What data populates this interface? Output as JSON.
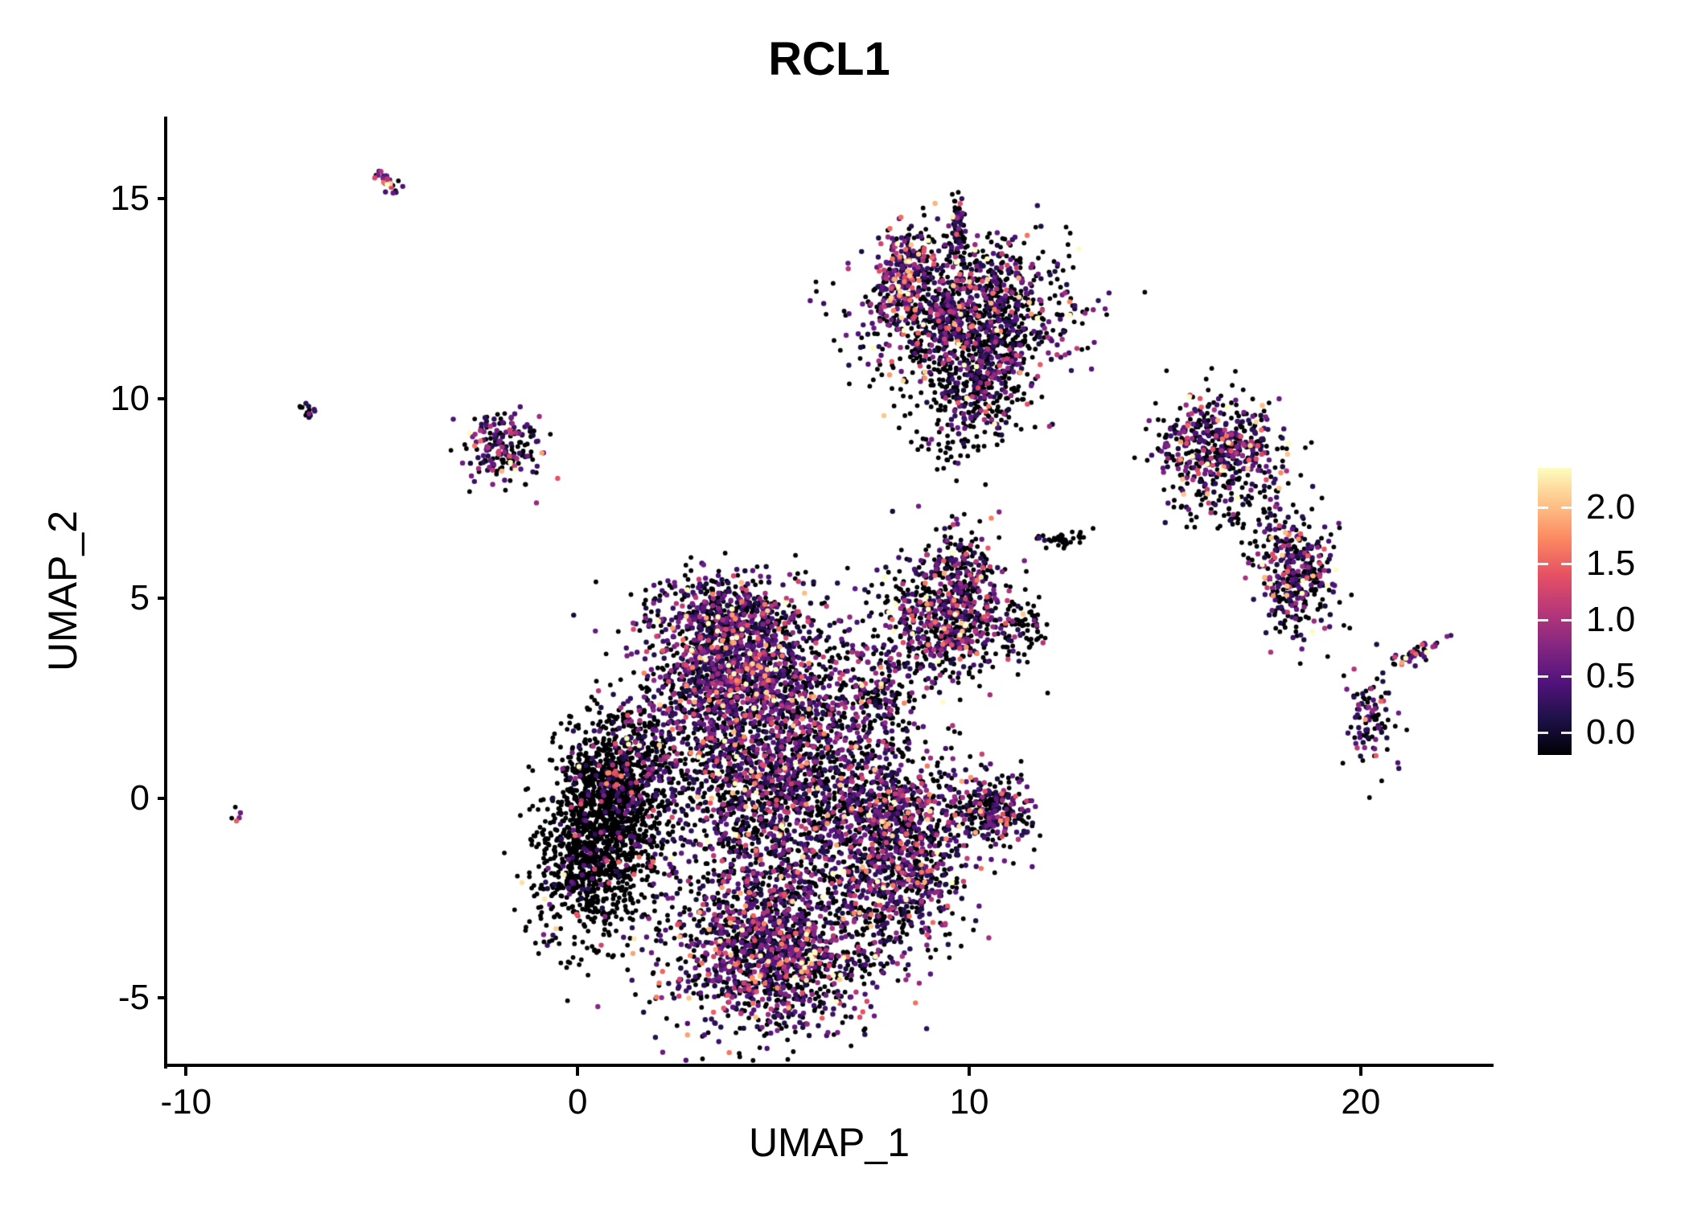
{
  "title": "RCL1",
  "axes": {
    "x": {
      "label": "UMAP_1",
      "ticks": [
        -10,
        0,
        10,
        20
      ]
    },
    "y": {
      "label": "UMAP_2",
      "ticks": [
        -5,
        0,
        5,
        10,
        15
      ]
    }
  },
  "style": {
    "background": "#ffffff",
    "axis_color": "#000000",
    "text_color": "#000000"
  },
  "chart_data": {
    "type": "scatter",
    "title": "RCL1",
    "xlabel": "UMAP_1",
    "ylabel": "UMAP_2",
    "xlim": [
      -10.5,
      23.35
    ],
    "ylim": [
      -6.68,
      17.06
    ],
    "x_ticks": [
      -10,
      0,
      10,
      20
    ],
    "y_ticks": [
      -5,
      0,
      5,
      10,
      15
    ],
    "grid": false,
    "legend_position": "right",
    "colormap": {
      "name": "magma",
      "domain": [
        0,
        2.34
      ],
      "stops": [
        [
          0.0,
          "#000004"
        ],
        [
          0.125,
          "#1d1147"
        ],
        [
          0.25,
          "#51127c"
        ],
        [
          0.375,
          "#822681"
        ],
        [
          0.5,
          "#b73779"
        ],
        [
          0.625,
          "#e55064"
        ],
        [
          0.75,
          "#fb8761"
        ],
        [
          0.875,
          "#fec287"
        ],
        [
          1.0,
          "#fcfdbf"
        ]
      ]
    },
    "colorbar": {
      "ticks": [
        0.0,
        0.5,
        1.0,
        1.5,
        2.0
      ],
      "bar_range": [
        -0.2,
        2.35
      ],
      "tick_format_decimals": 1
    },
    "seed": 42,
    "point_radius": 2.9,
    "clusters": [
      {
        "name": "main-left-dense",
        "cx": 0.55,
        "cy": -0.9,
        "sx": 0.75,
        "sy": 1.35,
        "n": 1500,
        "rot": -10,
        "expr_frac": 0.08,
        "expr_scale": 0.5
      },
      {
        "name": "main-left-upper",
        "cx": 1.3,
        "cy": 0.7,
        "sx": 0.7,
        "sy": 0.8,
        "n": 400,
        "rot": 0,
        "expr_frac": 0.2,
        "expr_scale": 0.5
      },
      {
        "name": "main-top",
        "cx": 4.2,
        "cy": 3.1,
        "sx": 1.3,
        "sy": 0.95,
        "n": 1300,
        "rot": 0,
        "expr_frac": 0.6,
        "expr_scale": 0.55
      },
      {
        "name": "main-top-upper",
        "cx": 3.9,
        "cy": 4.6,
        "sx": 1.0,
        "sy": 0.55,
        "n": 450,
        "rot": 0,
        "expr_frac": 0.5,
        "expr_scale": 0.55
      },
      {
        "name": "main-center",
        "cx": 5.2,
        "cy": 0.2,
        "sx": 1.6,
        "sy": 1.5,
        "n": 1900,
        "rot": 0,
        "expr_frac": 0.45,
        "expr_scale": 0.55
      },
      {
        "name": "main-bottom",
        "cx": 4.9,
        "cy": -3.8,
        "sx": 1.35,
        "sy": 1.0,
        "n": 1500,
        "rot": 0,
        "expr_frac": 0.5,
        "expr_scale": 0.55
      },
      {
        "name": "main-right-arm",
        "cx": 8.2,
        "cy": -0.6,
        "sx": 0.9,
        "sy": 0.9,
        "n": 650,
        "rot": 0,
        "expr_frac": 0.5,
        "expr_scale": 0.55
      },
      {
        "name": "main-right-lower",
        "cx": 8.3,
        "cy": -2.3,
        "sx": 0.8,
        "sy": 0.8,
        "n": 400,
        "rot": 0,
        "expr_frac": 0.5,
        "expr_scale": 0.55
      },
      {
        "name": "right-appendage",
        "cx": 10.6,
        "cy": -0.35,
        "sx": 0.55,
        "sy": 0.45,
        "n": 260,
        "rot": 0,
        "expr_frac": 0.45,
        "expr_scale": 0.5
      },
      {
        "name": "mid-right",
        "cx": 9.3,
        "cy": 4.5,
        "sx": 0.85,
        "sy": 0.8,
        "n": 650,
        "rot": 0,
        "expr_frac": 0.5,
        "expr_scale": 0.6
      },
      {
        "name": "mid-right-top",
        "cx": 9.9,
        "cy": 5.9,
        "sx": 0.4,
        "sy": 0.55,
        "n": 130,
        "rot": 0,
        "expr_frac": 0.45,
        "expr_scale": 0.6
      },
      {
        "name": "mid-right-black",
        "cx": 11.4,
        "cy": 4.2,
        "sx": 0.35,
        "sy": 0.4,
        "n": 70,
        "rot": 0,
        "expr_frac": 0.15,
        "expr_scale": 0.5
      },
      {
        "name": "bridge",
        "cx": 7.7,
        "cy": 2.5,
        "sx": 0.55,
        "sy": 0.75,
        "n": 160,
        "rot": 0,
        "expr_frac": 0.4,
        "expr_scale": 0.5
      },
      {
        "name": "top-main",
        "cx": 10.0,
        "cy": 12.1,
        "sx": 1.25,
        "sy": 0.95,
        "n": 1250,
        "rot": 0,
        "expr_frac": 0.45,
        "expr_scale": 0.55
      },
      {
        "name": "top-tail",
        "cx": 10.4,
        "cy": 10.4,
        "sx": 0.55,
        "sy": 0.65,
        "n": 260,
        "rot": 0,
        "expr_frac": 0.4,
        "expr_scale": 0.5
      },
      {
        "name": "top-spike",
        "cx": 9.7,
        "cy": 14.2,
        "sx": 0.13,
        "sy": 0.4,
        "n": 70,
        "rot": 0,
        "expr_frac": 0.4,
        "expr_scale": 0.5
      },
      {
        "name": "top-left-edge",
        "cx": 8.35,
        "cy": 13.2,
        "sx": 0.35,
        "sy": 0.5,
        "n": 200,
        "rot": 0,
        "expr_frac": 0.7,
        "expr_scale": 0.7
      },
      {
        "name": "top-under-scatter",
        "cx": 9.6,
        "cy": 9.2,
        "sx": 0.6,
        "sy": 0.6,
        "n": 70,
        "rot": 0,
        "expr_frac": 0.25,
        "expr_scale": 0.5
      },
      {
        "name": "right-upper",
        "cx": 16.4,
        "cy": 8.8,
        "sx": 0.8,
        "sy": 0.6,
        "n": 470,
        "rot": -15,
        "expr_frac": 0.5,
        "expr_scale": 0.6
      },
      {
        "name": "right-upper-scatter",
        "cx": 15.9,
        "cy": 7.7,
        "sx": 0.5,
        "sy": 0.5,
        "n": 50,
        "rot": 0,
        "expr_frac": 0.3,
        "expr_scale": 0.5
      },
      {
        "name": "right-between",
        "cx": 16.9,
        "cy": 7.3,
        "sx": 0.45,
        "sy": 0.45,
        "n": 35,
        "rot": 0,
        "expr_frac": 0.3,
        "expr_scale": 0.5
      },
      {
        "name": "right-mid",
        "cx": 18.3,
        "cy": 5.7,
        "sx": 0.5,
        "sy": 0.8,
        "n": 380,
        "rot": 15,
        "expr_frac": 0.5,
        "expr_scale": 0.6
      },
      {
        "name": "right-small",
        "cx": 20.2,
        "cy": 1.9,
        "sx": 0.28,
        "sy": 0.6,
        "n": 100,
        "rot": 0,
        "expr_frac": 0.4,
        "expr_scale": 0.5
      },
      {
        "name": "right-dash",
        "cx": 21.4,
        "cy": 3.6,
        "sx": 0.35,
        "sy": 0.1,
        "n": 45,
        "rot": 25,
        "expr_frac": 0.7,
        "expr_scale": 0.6
      },
      {
        "name": "mid-dash",
        "cx": 12.4,
        "cy": 6.5,
        "sx": 0.38,
        "sy": 0.09,
        "n": 35,
        "rot": 8,
        "expr_frac": 0.1,
        "expr_scale": 0.4
      },
      {
        "name": "left-small",
        "cx": -1.9,
        "cy": 8.8,
        "sx": 0.5,
        "sy": 0.5,
        "n": 190,
        "rot": -20,
        "expr_frac": 0.5,
        "expr_scale": 0.6
      },
      {
        "name": "left-tiny-pair",
        "cx": -6.85,
        "cy": 9.7,
        "sx": 0.12,
        "sy": 0.12,
        "n": 14,
        "rot": 0,
        "expr_frac": 0.6,
        "expr_scale": 0.6
      },
      {
        "name": "topleft-dash",
        "cx": -4.85,
        "cy": 15.45,
        "sx": 0.2,
        "sy": 0.09,
        "n": 30,
        "rot": -35,
        "expr_frac": 0.7,
        "expr_scale": 0.6
      },
      {
        "name": "left-lone-dot",
        "cx": -8.75,
        "cy": -0.45,
        "sx": 0.08,
        "sy": 0.08,
        "n": 5,
        "rot": 0,
        "expr_frac": 0.6,
        "expr_scale": 0.6
      }
    ]
  }
}
